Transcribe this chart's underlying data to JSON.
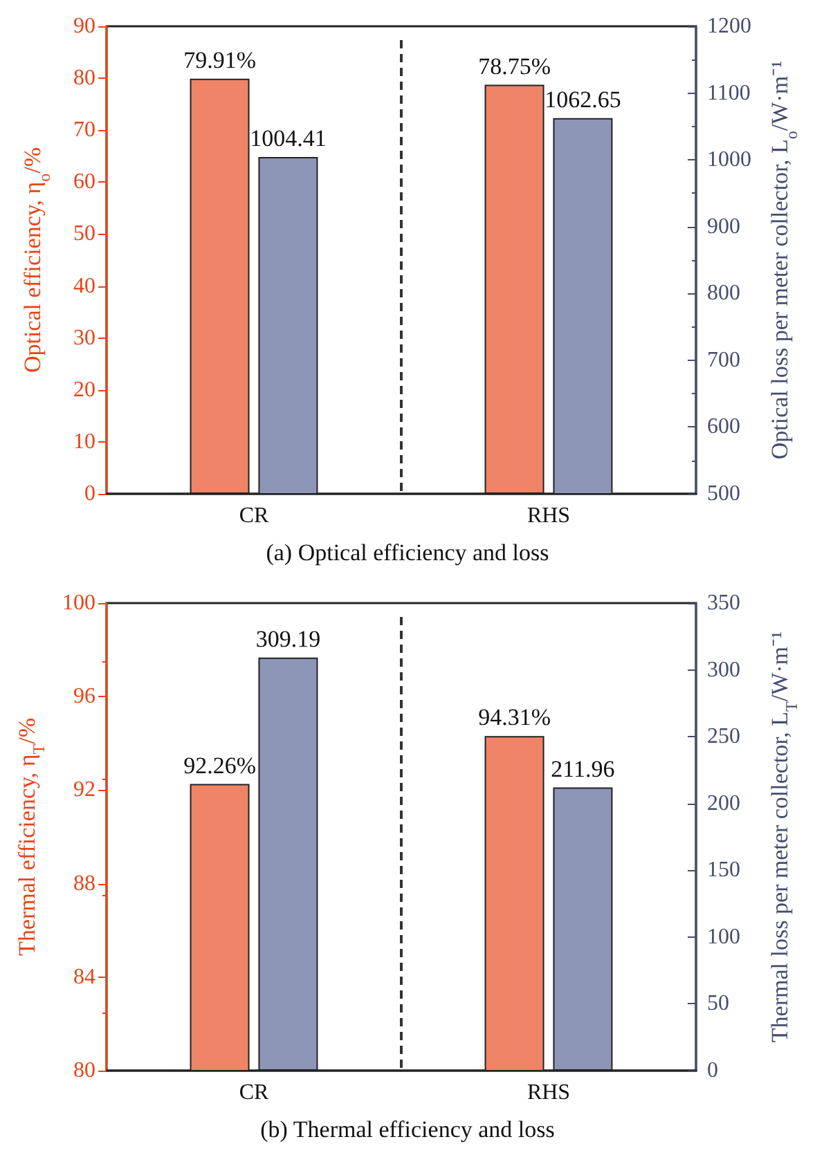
{
  "chart_data": [
    {
      "type": "bar",
      "title": "(a) Optical efficiency and loss",
      "ylabel": "Optical efficiency, η$_{o}$/%",
      "y2label": "Optical loss per meter collector, L$_{o}$/W·m⁻¹",
      "categories": [
        "CR",
        "RHS"
      ],
      "ylim": [
        0,
        90
      ],
      "yticks": [
        0,
        10,
        20,
        30,
        40,
        50,
        60,
        70,
        80,
        90
      ],
      "y2lim": [
        500,
        1200
      ],
      "y2ticks": [
        500,
        600,
        700,
        800,
        900,
        1000,
        1100,
        1200
      ],
      "grid": false,
      "series": [
        {
          "color": "#f08466",
          "values": [
            79.91,
            78.75
          ],
          "value_labels": [
            "79.91%",
            "78.75%"
          ]
        },
        {
          "color": "#8e96b8",
          "values": [
            1004.41,
            1062.65
          ],
          "value_labels": [
            "1004.41",
            "1062.65"
          ],
          "axis": "y2"
        }
      ]
    },
    {
      "type": "bar",
      "title": "(b) Thermal efficiency and loss",
      "ylabel": "Thermal efficiency, η$_{T}$/%",
      "y2label": "Thermal loss per meter collector, L$_{T}$/W·m⁻¹",
      "categories": [
        "CR",
        "RHS"
      ],
      "ylim": [
        80,
        100
      ],
      "yticks": [
        80,
        84,
        88,
        92,
        96,
        100
      ],
      "y2lim": [
        0,
        350
      ],
      "y2ticks": [
        0,
        50,
        100,
        150,
        200,
        250,
        300,
        350
      ],
      "grid": false,
      "series": [
        {
          "color": "#f08466",
          "values": [
            92.26,
            94.31
          ],
          "value_labels": [
            "92.26%",
            "94.31%"
          ]
        },
        {
          "color": "#8e96b8",
          "values": [
            309.19,
            211.96
          ],
          "value_labels": [
            "309.19",
            "211.96"
          ],
          "axis": "y2"
        }
      ]
    }
  ]
}
